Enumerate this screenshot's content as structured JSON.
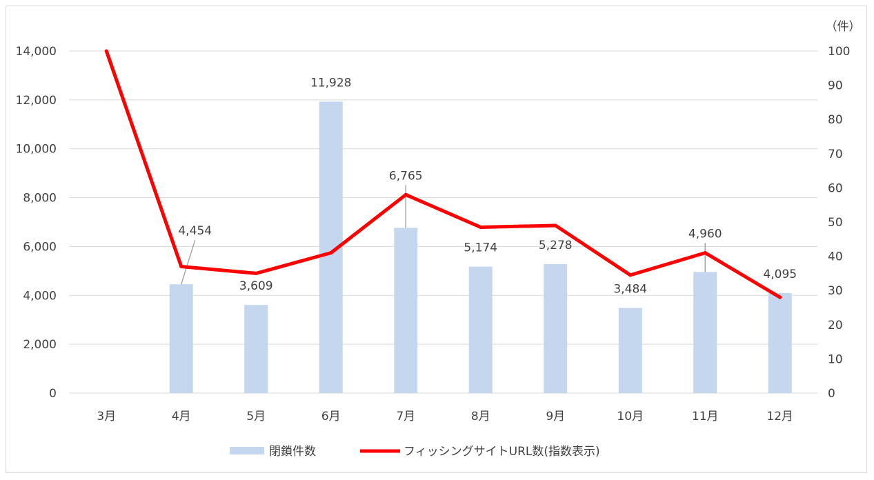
{
  "chart_data": {
    "type": "bar",
    "categories": [
      "3月",
      "4月",
      "5月",
      "6月",
      "7月",
      "8月",
      "9月",
      "10月",
      "11月",
      "12月"
    ],
    "series": [
      {
        "name": "閉鎖件数",
        "type": "bar",
        "axis": "left",
        "color": "#c5d7ef",
        "values": [
          null,
          4454,
          3609,
          11928,
          6765,
          5174,
          5278,
          3484,
          4960,
          4095
        ],
        "data_labels": [
          "",
          "4,454",
          "3,609",
          "11,928",
          "6,765",
          "5,174",
          "5,278",
          "3,484",
          "4,960",
          "4,095"
        ]
      },
      {
        "name": "フィッシングサイトURL数(指数表示)",
        "type": "line",
        "axis": "right",
        "color": "#ff0000",
        "values": [
          100,
          37,
          35,
          41,
          58,
          48.5,
          49,
          34.5,
          41,
          28
        ]
      }
    ],
    "y_left": {
      "min": 0,
      "max": 14000,
      "ticks": [
        "0",
        "2,000",
        "4,000",
        "6,000",
        "8,000",
        "10,000",
        "12,000",
        "14,000"
      ]
    },
    "y_right": {
      "min": 0,
      "max": 100,
      "unit": "（件）",
      "ticks": [
        "0",
        "10",
        "20",
        "30",
        "40",
        "50",
        "60",
        "70",
        "80",
        "90",
        "100"
      ]
    },
    "grid": true,
    "legend_position": "bottom"
  }
}
